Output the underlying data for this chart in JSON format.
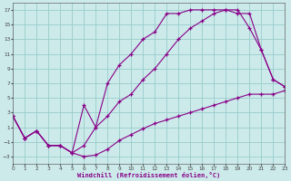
{
  "xlabel": "Windchill (Refroidissement éolien,°C)",
  "bg_color": "#cceaea",
  "grid_color": "#99cccc",
  "line_color": "#880088",
  "xlim": [
    0,
    23
  ],
  "ylim": [
    -4,
    18
  ],
  "xticks": [
    0,
    1,
    2,
    3,
    4,
    5,
    6,
    7,
    8,
    9,
    10,
    11,
    12,
    13,
    14,
    15,
    16,
    17,
    18,
    19,
    20,
    21,
    22,
    23
  ],
  "yticks": [
    -3,
    -1,
    1,
    3,
    5,
    7,
    9,
    11,
    13,
    15,
    17
  ],
  "curve_low_x": [
    0,
    1,
    2,
    3,
    4,
    5,
    6,
    7,
    8,
    9,
    10,
    11,
    12,
    13,
    14,
    15,
    16,
    17,
    18,
    19,
    20,
    21,
    22,
    23
  ],
  "curve_low_y": [
    2.5,
    -0.5,
    0.5,
    -1.5,
    -1.5,
    -2.5,
    -3.0,
    -2.8,
    -2.0,
    -0.8,
    0.0,
    0.8,
    1.5,
    2.0,
    2.5,
    3.0,
    3.5,
    4.0,
    4.5,
    5.0,
    5.5,
    5.5,
    5.5,
    6.0
  ],
  "curve_top_x": [
    0,
    1,
    2,
    3,
    4,
    5,
    6,
    7,
    8,
    9,
    10,
    11,
    12,
    13,
    14,
    15,
    16,
    17,
    18,
    19,
    20,
    21,
    22,
    23
  ],
  "curve_top_y": [
    2.5,
    -0.5,
    0.5,
    -1.5,
    -1.5,
    -2.5,
    4.0,
    1.0,
    7.0,
    9.5,
    11.0,
    13.0,
    14.0,
    16.5,
    16.5,
    17.0,
    17.0,
    17.0,
    17.0,
    16.5,
    16.5,
    11.5,
    7.5,
    6.5
  ],
  "curve_mid_x": [
    0,
    1,
    2,
    3,
    4,
    5,
    6,
    7,
    8,
    9,
    10,
    11,
    12,
    13,
    14,
    15,
    16,
    17,
    18,
    19,
    20,
    21,
    22,
    23
  ],
  "curve_mid_y": [
    2.5,
    -0.5,
    0.5,
    -1.5,
    -1.5,
    -2.5,
    -1.5,
    1.0,
    2.5,
    4.5,
    5.5,
    7.5,
    9.0,
    11.0,
    13.0,
    14.5,
    15.5,
    16.5,
    17.0,
    17.0,
    14.5,
    11.5,
    7.5,
    6.5
  ]
}
